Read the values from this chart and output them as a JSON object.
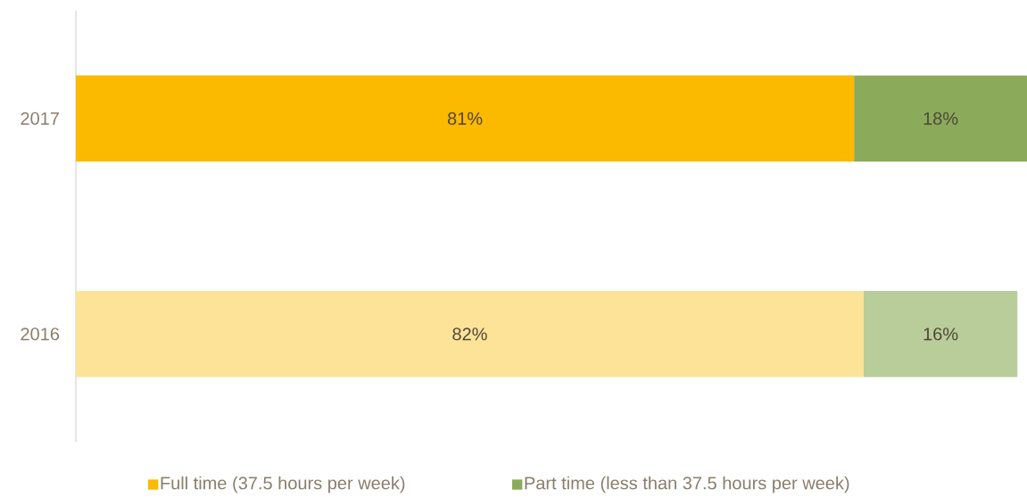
{
  "chart_data": {
    "type": "bar",
    "orientation": "horizontal",
    "stacked": true,
    "categories": [
      "2017",
      "2016"
    ],
    "series": [
      {
        "name": "Full time (37.5 hours per week)",
        "color": "#fbb900",
        "colors": [
          "#fbb900",
          "#fde398"
        ],
        "values": [
          81,
          82
        ],
        "value_labels": [
          "81%",
          "82%"
        ]
      },
      {
        "name": "Part time (less than 37.5 hours per week)",
        "color": "#8bab5a",
        "colors": [
          "#8bab5a",
          "#b9cd9a"
        ],
        "values": [
          18,
          16
        ],
        "value_labels": [
          "18%",
          "16%"
        ]
      }
    ],
    "legend": "bottom"
  }
}
